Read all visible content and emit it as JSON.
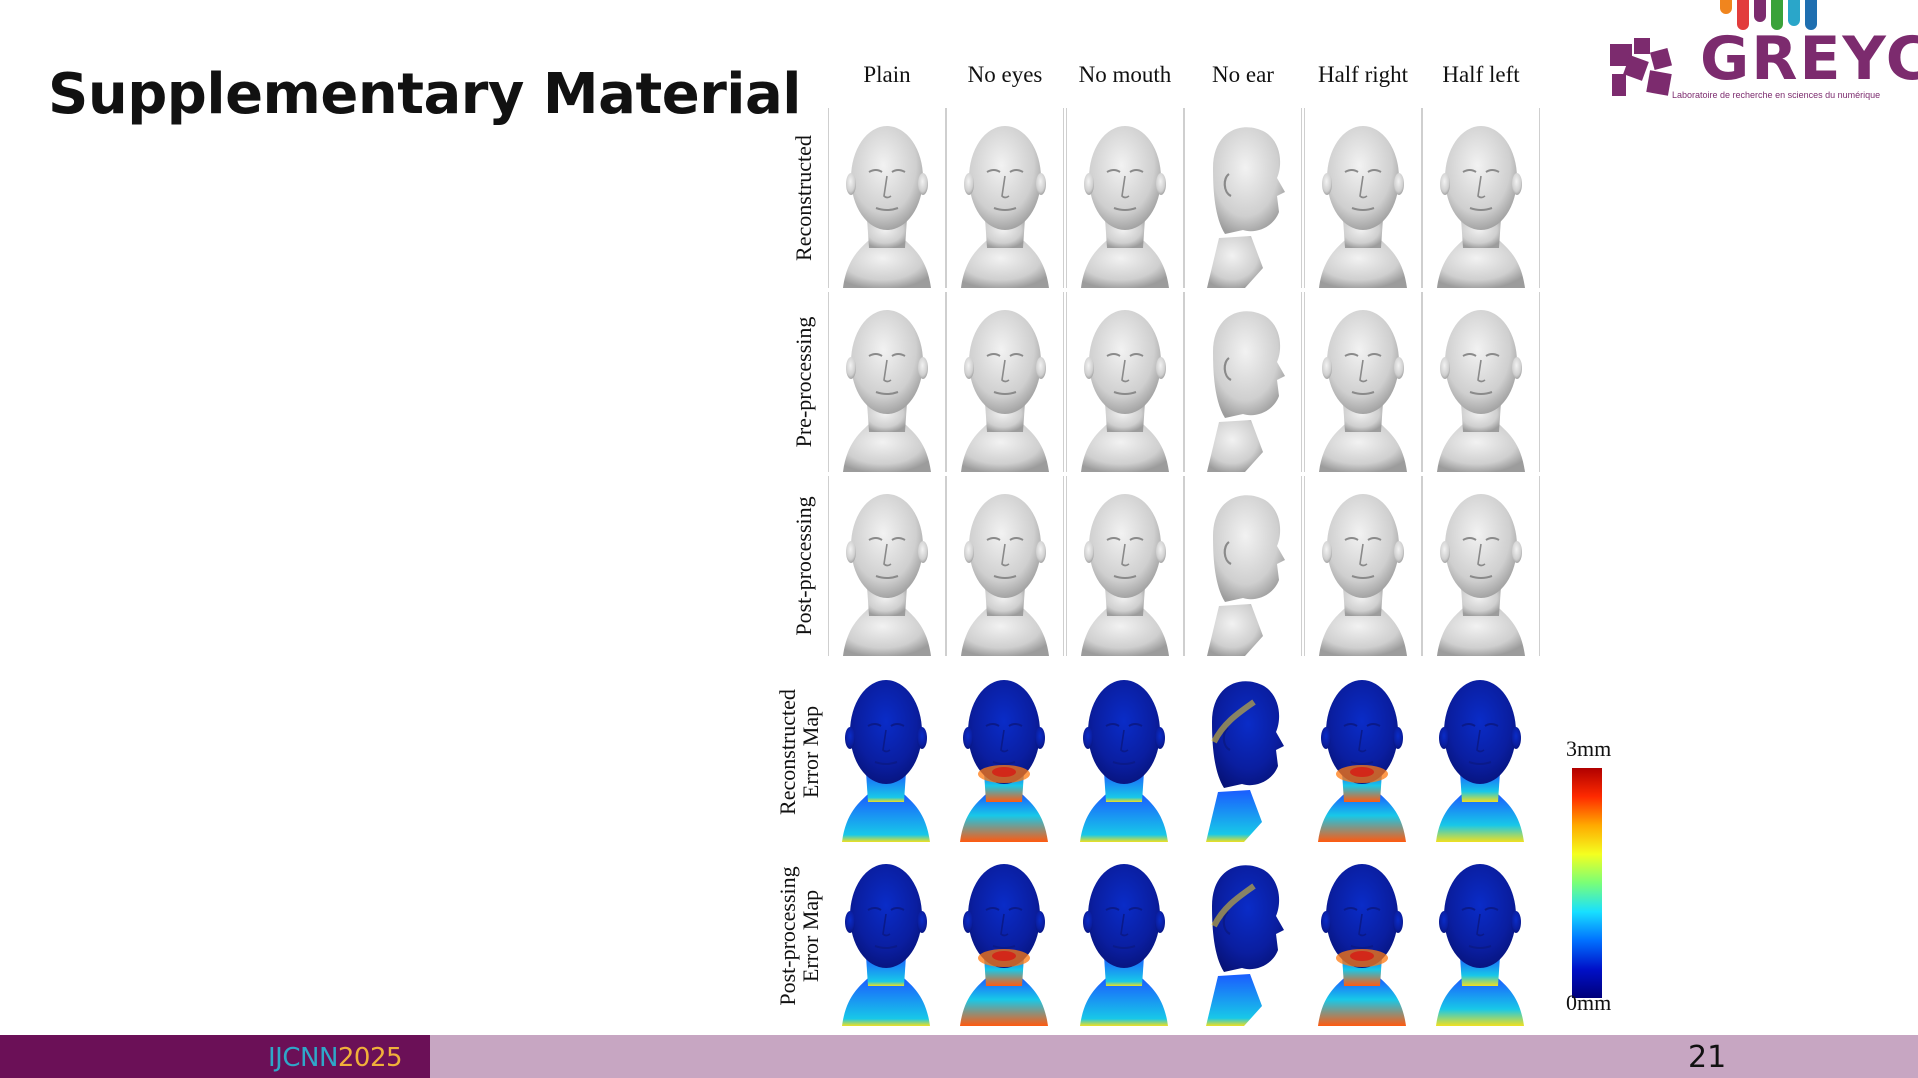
{
  "slide": {
    "title": "Supplementary Material",
    "page_number": "21"
  },
  "logo": {
    "text": "GREYC",
    "subtitle": "Laboratoire de recherche en sciences du numérique",
    "bar_colors": [
      "#f0851e",
      "#e23c3c",
      "#7c2b6e",
      "#3aa23a",
      "#2aa6c9",
      "#1f6fb0"
    ]
  },
  "footer": {
    "conference_a": "IJCNN",
    "conference_b": "2025"
  },
  "figure": {
    "columns": [
      "Plain",
      "No eyes",
      "No mouth",
      "No ear",
      "Half right",
      "Half left"
    ],
    "rows": [
      {
        "label": "Reconstructed",
        "kind": "gray"
      },
      {
        "label": "Pre-processing",
        "kind": "gray"
      },
      {
        "label": "Post-processing",
        "kind": "gray"
      },
      {
        "label": "Reconstructed\nError Map",
        "kind": "error"
      },
      {
        "label": "Post-processing\nError Map",
        "kind": "error"
      }
    ],
    "colorbar": {
      "max_label": "3mm",
      "min_label": "0mm"
    }
  }
}
